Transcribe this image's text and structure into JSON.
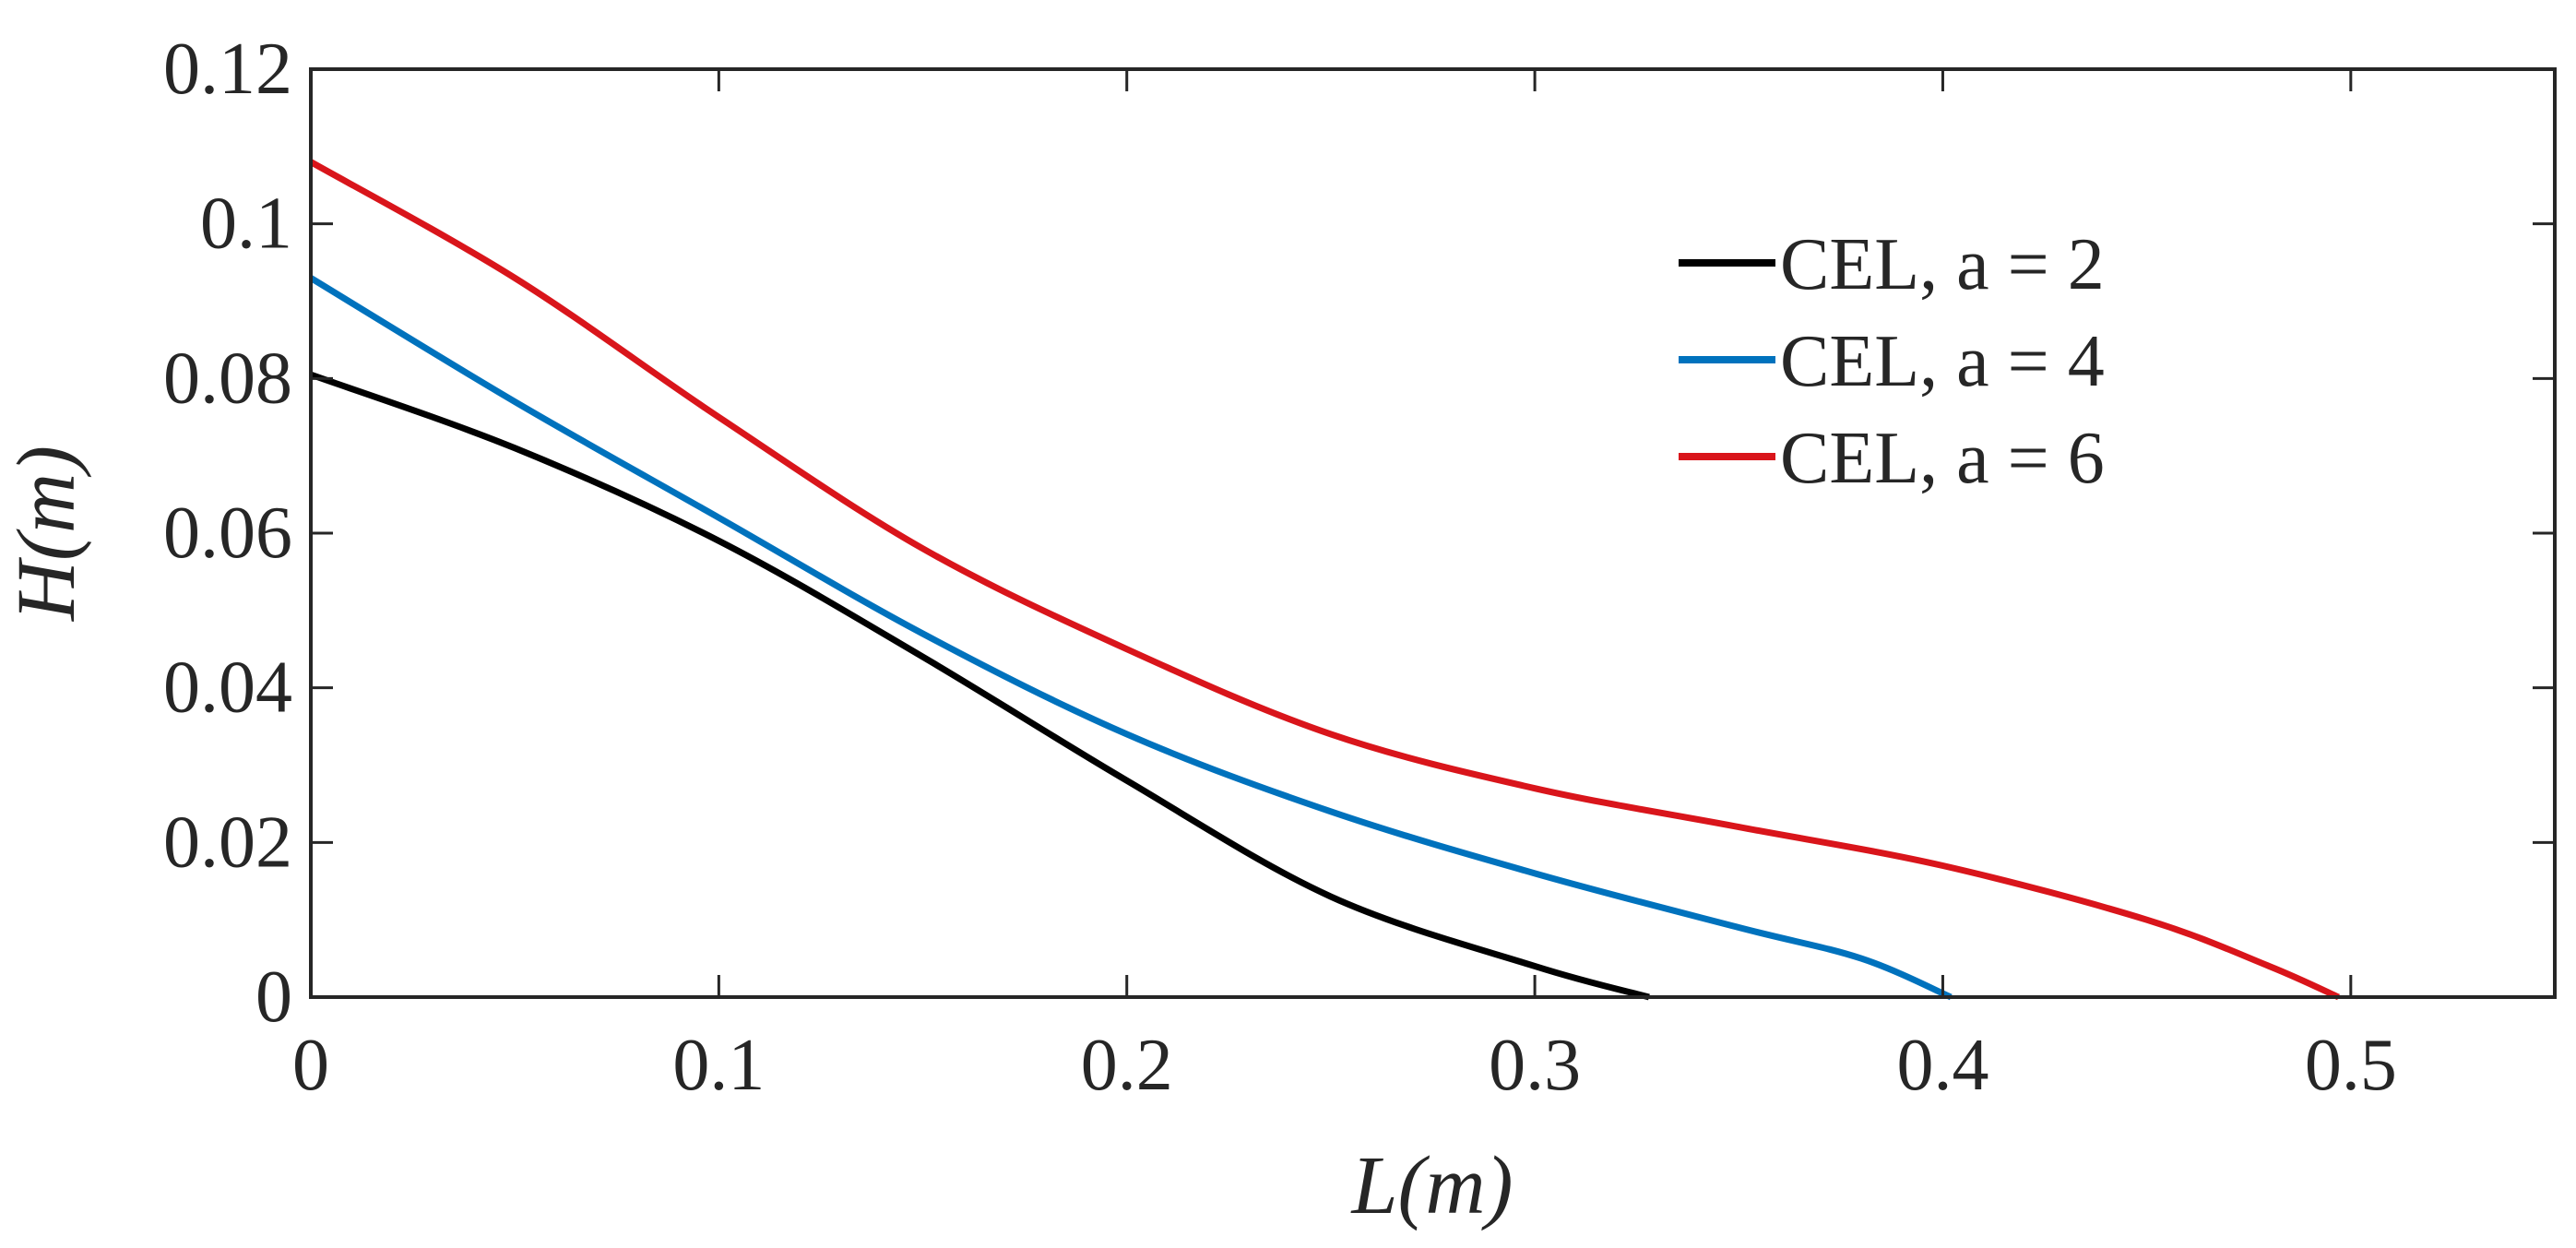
{
  "chart_data": {
    "type": "line",
    "title": "",
    "xlabel": "L(m)",
    "ylabel": "H(m)",
    "xlim": [
      0,
      0.55
    ],
    "ylim": [
      0,
      0.12
    ],
    "xticks": [
      0,
      0.1,
      0.2,
      0.3,
      0.4,
      0.5
    ],
    "xtick_labels": [
      "0",
      "0.1",
      "0.2",
      "0.3",
      "0.4",
      "0.5"
    ],
    "yticks": [
      0,
      0.02,
      0.04,
      0.06,
      0.08,
      0.1,
      0.12
    ],
    "ytick_labels": [
      "0",
      "0.02",
      "0.04",
      "0.06",
      "0.08",
      "0.1",
      "0.12"
    ],
    "grid": false,
    "legend_position": "top-right",
    "series": [
      {
        "name": "CEL, a = 2",
        "color": "#000000",
        "x": [
          0,
          0.05,
          0.1,
          0.15,
          0.2,
          0.25,
          0.3,
          0.328
        ],
        "y": [
          0.0805,
          0.071,
          0.059,
          0.044,
          0.028,
          0.013,
          0.004,
          0
        ]
      },
      {
        "name": "CEL, a = 4",
        "color": "#0072BD",
        "x": [
          0,
          0.05,
          0.1,
          0.15,
          0.2,
          0.25,
          0.3,
          0.35,
          0.38,
          0.402
        ],
        "y": [
          0.093,
          0.077,
          0.062,
          0.047,
          0.034,
          0.024,
          0.016,
          0.009,
          0.005,
          0
        ]
      },
      {
        "name": "CEL, a = 6",
        "color": "#D9151B",
        "x": [
          0,
          0.05,
          0.1,
          0.15,
          0.2,
          0.25,
          0.3,
          0.35,
          0.4,
          0.45,
          0.48,
          0.497
        ],
        "y": [
          0.108,
          0.093,
          0.075,
          0.058,
          0.045,
          0.034,
          0.027,
          0.022,
          0.017,
          0.01,
          0.004,
          0
        ]
      }
    ]
  }
}
